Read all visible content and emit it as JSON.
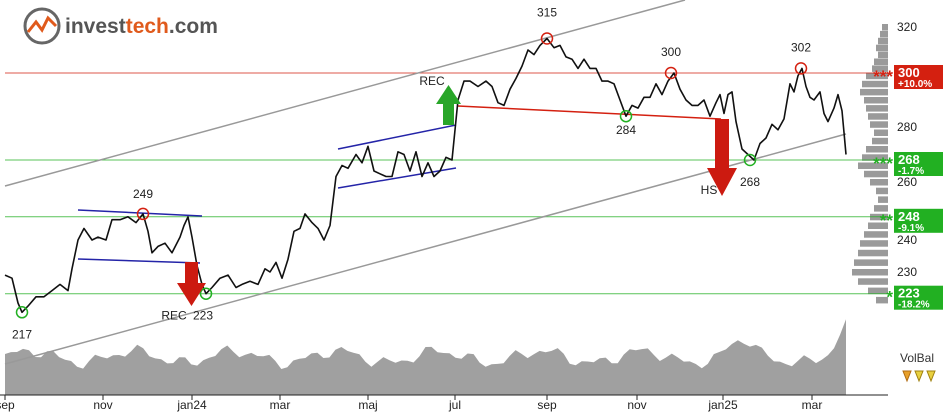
{
  "brand": {
    "name_part1": "invest",
    "name_part2": "tech",
    "name_part3": ".com",
    "color_dark": "#555555",
    "color_accent": "#e05a1c"
  },
  "chart_data": {
    "type": "line",
    "title": "",
    "xlabel": "",
    "ylabel": "",
    "ylim": [
      207,
      326
    ],
    "y_ticks": [
      320,
      300,
      280,
      260,
      240,
      230,
      220
    ],
    "x_ticks": [
      "sep",
      "nov",
      "jan24",
      "mar",
      "maj",
      "jul",
      "sep",
      "nov",
      "jan25",
      "mar"
    ],
    "x_tick_pos": [
      5,
      103,
      192,
      280,
      368,
      455,
      547,
      637,
      723,
      812
    ],
    "grid": false,
    "series": [
      {
        "values": [
          [
            5,
            229
          ],
          [
            12,
            228
          ],
          [
            18,
            220
          ],
          [
            22,
            217
          ],
          [
            28,
            219
          ],
          [
            36,
            222
          ],
          [
            44,
            222
          ],
          [
            52,
            224
          ],
          [
            60,
            226
          ],
          [
            68,
            224
          ],
          [
            72,
            231
          ],
          [
            78,
            240
          ],
          [
            84,
            244
          ],
          [
            92,
            240
          ],
          [
            98,
            241
          ],
          [
            106,
            240
          ],
          [
            112,
            247
          ],
          [
            120,
            247
          ],
          [
            128,
            248
          ],
          [
            136,
            246
          ],
          [
            143,
            249
          ],
          [
            148,
            243
          ],
          [
            152,
            236
          ],
          [
            158,
            238
          ],
          [
            165,
            239
          ],
          [
            172,
            236
          ],
          [
            180,
            241
          ],
          [
            184,
            245
          ],
          [
            188,
            248
          ],
          [
            192,
            241
          ],
          [
            197,
            232
          ],
          [
            202,
            226
          ],
          [
            206,
            223
          ],
          [
            212,
            225
          ],
          [
            220,
            228
          ],
          [
            228,
            229
          ],
          [
            236,
            225
          ],
          [
            242,
            226
          ],
          [
            250,
            227
          ],
          [
            258,
            226
          ],
          [
            265,
            231
          ],
          [
            270,
            230
          ],
          [
            276,
            233
          ],
          [
            282,
            228
          ],
          [
            288,
            234
          ],
          [
            294,
            243
          ],
          [
            300,
            244
          ],
          [
            305,
            249
          ],
          [
            312,
            246
          ],
          [
            318,
            244
          ],
          [
            324,
            240
          ],
          [
            330,
            245
          ],
          [
            336,
            262
          ],
          [
            342,
            266
          ],
          [
            348,
            265
          ],
          [
            356,
            270
          ],
          [
            362,
            267
          ],
          [
            368,
            273
          ],
          [
            374,
            264
          ],
          [
            380,
            263
          ],
          [
            386,
            262
          ],
          [
            392,
            262
          ],
          [
            398,
            271
          ],
          [
            404,
            270
          ],
          [
            410,
            264
          ],
          [
            416,
            271
          ],
          [
            422,
            262
          ],
          [
            428,
            267
          ],
          [
            434,
            262
          ],
          [
            440,
            264
          ],
          [
            446,
            269
          ],
          [
            452,
            268
          ],
          [
            458,
            290
          ],
          [
            464,
            297
          ],
          [
            470,
            297
          ],
          [
            478,
            295
          ],
          [
            486,
            297
          ],
          [
            492,
            295
          ],
          [
            498,
            289
          ],
          [
            504,
            288
          ],
          [
            510,
            294
          ],
          [
            516,
            298
          ],
          [
            522,
            303
          ],
          [
            528,
            310
          ],
          [
            534,
            308
          ],
          [
            540,
            312
          ],
          [
            547,
            315
          ],
          [
            554,
            311
          ],
          [
            560,
            312
          ],
          [
            566,
            307
          ],
          [
            572,
            306
          ],
          [
            578,
            302
          ],
          [
            584,
            306
          ],
          [
            590,
            302
          ],
          [
            596,
            302
          ],
          [
            602,
            297
          ],
          [
            608,
            297
          ],
          [
            614,
            296
          ],
          [
            620,
            290
          ],
          [
            626,
            284
          ],
          [
            632,
            288
          ],
          [
            638,
            287
          ],
          [
            644,
            291
          ],
          [
            650,
            291
          ],
          [
            656,
            296
          ],
          [
            662,
            292
          ],
          [
            668,
            297
          ],
          [
            674,
            300
          ],
          [
            680,
            294
          ],
          [
            686,
            290
          ],
          [
            692,
            288
          ],
          [
            698,
            288
          ],
          [
            704,
            290
          ],
          [
            710,
            284
          ],
          [
            716,
            289
          ],
          [
            720,
            292
          ],
          [
            724,
            285
          ],
          [
            728,
            292
          ],
          [
            732,
            293
          ],
          [
            736,
            282
          ],
          [
            742,
            272
          ],
          [
            748,
            270
          ],
          [
            754,
            268
          ],
          [
            760,
            274
          ],
          [
            766,
            276
          ],
          [
            772,
            281
          ],
          [
            778,
            279
          ],
          [
            784,
            283
          ],
          [
            790,
            296
          ],
          [
            794,
            293
          ],
          [
            798,
            299
          ],
          [
            802,
            302
          ],
          [
            806,
            295
          ],
          [
            810,
            291
          ],
          [
            814,
            290
          ],
          [
            820,
            293
          ],
          [
            824,
            285
          ],
          [
            828,
            282
          ],
          [
            834,
            287
          ],
          [
            838,
            292
          ],
          [
            842,
            286
          ],
          [
            844,
            278
          ],
          [
            846,
            270
          ]
        ]
      }
    ]
  },
  "levels": [
    {
      "price": "300",
      "pct": "+10.0%",
      "stars": "***",
      "y": 300,
      "color": "#d42010"
    },
    {
      "price": "268",
      "pct": "-1.7%",
      "stars": "***",
      "y": 268,
      "color": "#22b022"
    },
    {
      "price": "248",
      "pct": "-9.1%",
      "stars": "**",
      "y": 248,
      "color": "#22b022"
    },
    {
      "price": "223",
      "pct": "-18.2%",
      "stars": "*",
      "y": 223,
      "color": "#22b022"
    }
  ],
  "annotations": [
    {
      "text": "217",
      "xpos": 22,
      "y": 217,
      "dy": 26
    },
    {
      "text": "249",
      "xpos": 143,
      "y": 249,
      "dy": -16
    },
    {
      "text": "REC",
      "xpos": 174,
      "y": 223,
      "dy": 26
    },
    {
      "text": "223",
      "xpos": 203,
      "y": 223,
      "dy": 26
    },
    {
      "text": "REC",
      "xpos": 432,
      "y": 297,
      "dy": 4
    },
    {
      "text": "315",
      "xpos": 547,
      "y": 315,
      "dy": -22
    },
    {
      "text": "284",
      "xpos": 626,
      "y": 284,
      "dy": 18
    },
    {
      "text": "300",
      "xpos": 671,
      "y": 300,
      "dy": -17
    },
    {
      "text": "HS",
      "xpos": 709,
      "y": 268,
      "dy": 34
    },
    {
      "text": "268",
      "xpos": 750,
      "y": 268,
      "dy": 26
    },
    {
      "text": "302",
      "xpos": 801,
      "y": 302,
      "dy": -17
    }
  ],
  "volbal_label": "VolBal",
  "colors": {
    "price_line": "#111111",
    "channel": "#999999",
    "rect_lines": "#2424a8",
    "hs_neckline": "#d42010",
    "up_arrow": "#29a629",
    "down_arrow": "#cc1a10",
    "support": "#22b022",
    "resistance": "#d42010",
    "volume_fill": "#a0a0a0",
    "histogram_fill": "#9a9a9a"
  }
}
